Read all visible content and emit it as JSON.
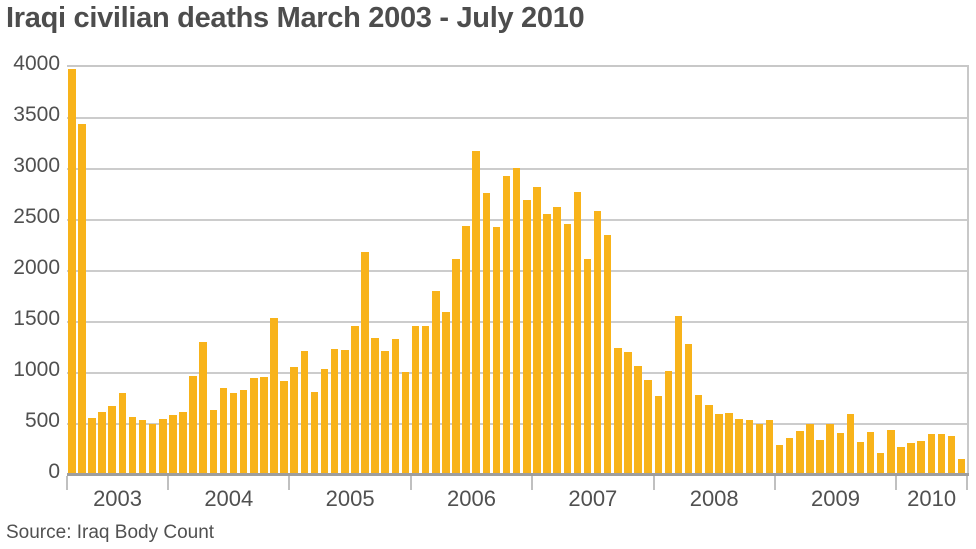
{
  "chart_data": {
    "type": "bar",
    "title": "Iraqi civilian deaths March 2003 - July 2010",
    "source": "Source: Iraq Body Count",
    "xlabel": "",
    "ylabel": "",
    "ylim": [
      0,
      4000
    ],
    "yticks": [
      0,
      500,
      1000,
      1500,
      2000,
      2500,
      3000,
      3500,
      4000
    ],
    "grid": true,
    "bar_color": "#f8b31a",
    "year_labels": [
      "2003",
      "2004",
      "2005",
      "2006",
      "2007",
      "2008",
      "2009",
      "2010"
    ],
    "categories": [
      "Mar 2003",
      "Apr 2003",
      "May 2003",
      "Jun 2003",
      "Jul 2003",
      "Aug 2003",
      "Sep 2003",
      "Oct 2003",
      "Nov 2003",
      "Dec 2003",
      "Jan 2004",
      "Feb 2004",
      "Mar 2004",
      "Apr 2004",
      "May 2004",
      "Jun 2004",
      "Jul 2004",
      "Aug 2004",
      "Sep 2004",
      "Oct 2004",
      "Nov 2004",
      "Dec 2004",
      "Jan 2005",
      "Feb 2005",
      "Mar 2005",
      "Apr 2005",
      "May 2005",
      "Jun 2005",
      "Jul 2005",
      "Aug 2005",
      "Sep 2005",
      "Oct 2005",
      "Nov 2005",
      "Dec 2005",
      "Jan 2006",
      "Feb 2006",
      "Mar 2006",
      "Apr 2006",
      "May 2006",
      "Jun 2006",
      "Jul 2006",
      "Aug 2006",
      "Sep 2006",
      "Oct 2006",
      "Nov 2006",
      "Dec 2006",
      "Jan 2007",
      "Feb 2007",
      "Mar 2007",
      "Apr 2007",
      "May 2007",
      "Jun 2007",
      "Jul 2007",
      "Aug 2007",
      "Sep 2007",
      "Oct 2007",
      "Nov 2007",
      "Dec 2007",
      "Jan 2008",
      "Feb 2008",
      "Mar 2008",
      "Apr 2008",
      "May 2008",
      "Jun 2008",
      "Jul 2008",
      "Aug 2008",
      "Sep 2008",
      "Oct 2008",
      "Nov 2008",
      "Dec 2008",
      "Jan 2009",
      "Feb 2009",
      "Mar 2009",
      "Apr 2009",
      "May 2009",
      "Jun 2009",
      "Jul 2009",
      "Aug 2009",
      "Sep 2009",
      "Oct 2009",
      "Nov 2009",
      "Dec 2009",
      "Jan 2010",
      "Feb 2010",
      "Mar 2010",
      "Apr 2010",
      "May 2010",
      "Jun 2010",
      "Jul 2010"
    ],
    "values": [
      3980,
      3440,
      560,
      620,
      680,
      800,
      570,
      540,
      500,
      550,
      590,
      620,
      970,
      1300,
      640,
      850,
      800,
      830,
      950,
      960,
      1540,
      920,
      1060,
      1220,
      810,
      1040,
      1240,
      1230,
      1460,
      2190,
      1340,
      1220,
      1330,
      1010,
      1460,
      1460,
      1800,
      1600,
      2120,
      2440,
      3180,
      2760,
      2430,
      2930,
      3010,
      2700,
      2820,
      2560,
      2630,
      2460,
      2770,
      2120,
      2590,
      2350,
      1250,
      1210,
      1070,
      930,
      770,
      1020,
      1560,
      1280,
      780,
      690,
      600,
      610,
      550,
      540,
      500,
      540,
      290,
      360,
      430,
      500,
      340,
      500,
      410,
      600,
      320,
      420,
      220,
      440,
      270,
      310,
      330,
      400,
      400,
      380,
      160
    ]
  }
}
